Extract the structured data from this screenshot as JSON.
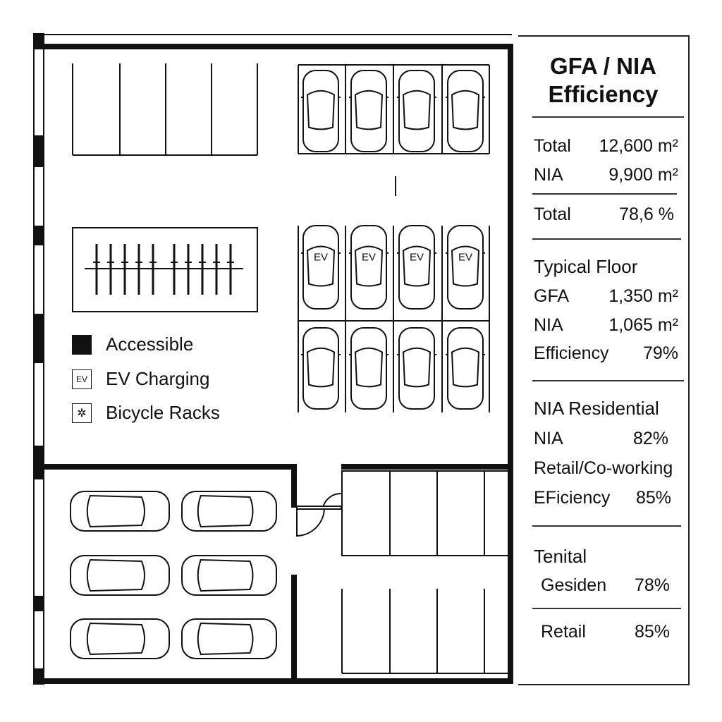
{
  "legend": [
    {
      "label": "Accessible",
      "icon": "accessible-icon"
    },
    {
      "label": "EV Charging",
      "icon": "ev-icon",
      "badge": "EV"
    },
    {
      "label": "Bicycle Racks",
      "icon": "bicycle-icon"
    }
  ],
  "ev_label": "EV",
  "panel": {
    "title_line1": "GFA / NIA",
    "title_line2": "Efficiency",
    "totals": [
      {
        "label": "Total",
        "value": "12,600 m²"
      },
      {
        "label": "NIA",
        "value": "9,900 m²"
      }
    ],
    "total_eff": {
      "label": "Total",
      "value": "78,6 %"
    },
    "typical": {
      "heading": "Typical Floor",
      "rows": [
        {
          "label": "GFA",
          "value": "1,350 m²"
        },
        {
          "label": "NIA",
          "value": "1,065 m²"
        },
        {
          "label": "Efficiency",
          "value": "79%"
        }
      ]
    },
    "residential": {
      "heading": "NIA Residential",
      "nia_label": "NIA",
      "nia_value": "82%",
      "sub": "Retail/Co-working",
      "eff_label": "EFiciency",
      "eff_value": "85%"
    },
    "tenital": {
      "heading": "Tenital",
      "rows": [
        {
          "label": "Gesiden",
          "value": "78%"
        },
        {
          "label": "Retail",
          "value": "85%"
        }
      ]
    }
  }
}
